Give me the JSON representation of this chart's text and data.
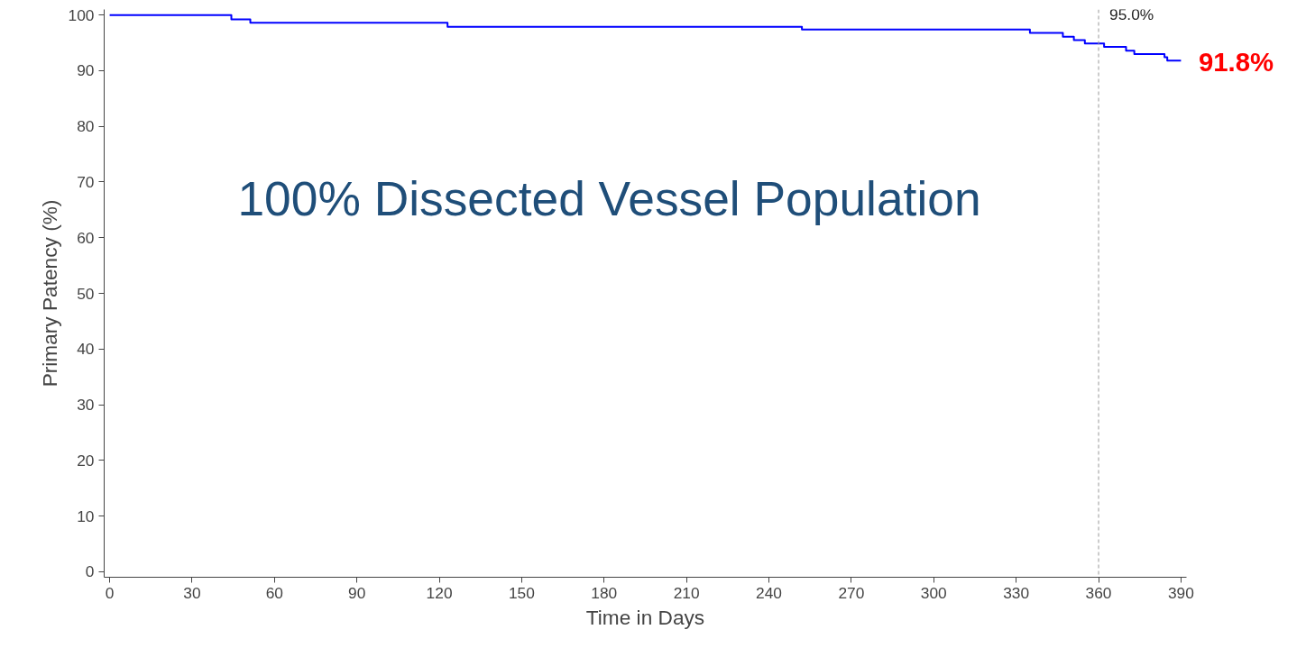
{
  "chart_data": {
    "type": "step",
    "xlabel": "Time in Days",
    "ylabel": "Primary Patency (%)",
    "x": [
      0,
      44.3,
      51.2,
      123,
      252,
      335,
      347,
      351,
      355,
      362,
      370,
      373,
      384,
      385,
      390
    ],
    "series": [
      {
        "color": "#0000ff",
        "values": [
          100,
          99.2,
          98.6,
          97.9,
          97.4,
          96.8,
          96.1,
          95.5,
          94.9,
          94.3,
          93.6,
          93.0,
          92.4,
          91.8,
          91.8
        ]
      }
    ],
    "xlim": [
      -2,
      392
    ],
    "ylim": [
      -1,
      101
    ],
    "xticks": [
      0,
      30,
      60,
      90,
      120,
      150,
      180,
      210,
      240,
      270,
      300,
      330,
      360,
      390
    ],
    "yticks": [
      0,
      10,
      20,
      30,
      40,
      50,
      60,
      70,
      80,
      90,
      100
    ],
    "grid": false,
    "ref_lines": [
      {
        "axis": "x",
        "value": 360,
        "color": "#999999",
        "line_style": "dashed"
      }
    ],
    "annotations": [
      "100% Dissected Vessel Population",
      {
        "text": "95.0%",
        "x": 360,
        "y": 95.0
      },
      {
        "text": "91.8%",
        "x": 390,
        "y": 91.8
      }
    ]
  }
}
